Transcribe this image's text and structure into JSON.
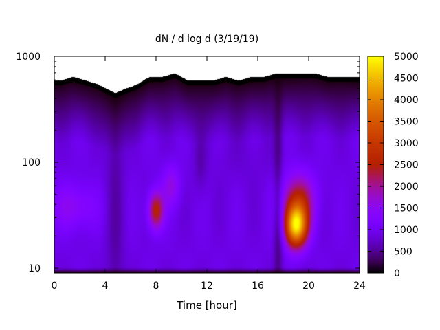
{
  "chart_data": {
    "type": "heatmap",
    "title": "dN / d log d (3/19/19)",
    "xlabel": "Time [hour]",
    "ylabel": "",
    "x_range": [
      0,
      24
    ],
    "y_range": [
      9,
      1000
    ],
    "y_scale": "log",
    "x_ticks": [
      0,
      4,
      8,
      12,
      16,
      20,
      24
    ],
    "x_tick_labels": [
      "0",
      "4",
      "8",
      "12",
      "16",
      "20",
      "24"
    ],
    "y_ticks": [
      10,
      100,
      1000
    ],
    "y_tick_labels": [
      "10",
      "100",
      "1000"
    ],
    "colorbar": {
      "range": [
        0,
        5000
      ],
      "ticks": [
        0,
        500,
        1000,
        1500,
        2000,
        2500,
        3000,
        3500,
        4000,
        4500,
        5000
      ],
      "tick_labels": [
        "0",
        "500",
        "1000",
        "1500",
        "2000",
        "2500",
        "3000",
        "3500",
        "4000",
        "4500",
        "5000"
      ],
      "colormap": "gnuplot-rgbformulae-7-5-15 (black-purple-red-orange-yellow)",
      "position": "right"
    },
    "grid": false,
    "upper_detection_limit_diameter": [
      {
        "x": 0.0,
        "y": 590
      },
      {
        "x": 0.5,
        "y": 590
      },
      {
        "x": 1.5,
        "y": 640
      },
      {
        "x": 2.5,
        "y": 590
      },
      {
        "x": 3.5,
        "y": 540
      },
      {
        "x": 4.2,
        "y": 490
      },
      {
        "x": 4.8,
        "y": 450
      },
      {
        "x": 5.5,
        "y": 490
      },
      {
        "x": 6.5,
        "y": 540
      },
      {
        "x": 7.5,
        "y": 640
      },
      {
        "x": 8.5,
        "y": 640
      },
      {
        "x": 9.5,
        "y": 690
      },
      {
        "x": 10.5,
        "y": 590
      },
      {
        "x": 11.5,
        "y": 590
      },
      {
        "x": 12.5,
        "y": 590
      },
      {
        "x": 13.5,
        "y": 640
      },
      {
        "x": 14.5,
        "y": 590
      },
      {
        "x": 15.5,
        "y": 640
      },
      {
        "x": 16.5,
        "y": 640
      },
      {
        "x": 17.5,
        "y": 690
      },
      {
        "x": 18.5,
        "y": 690
      },
      {
        "x": 19.5,
        "y": 690
      },
      {
        "x": 20.5,
        "y": 690
      },
      {
        "x": 21.5,
        "y": 640
      },
      {
        "x": 22.5,
        "y": 640
      },
      {
        "x": 24.0,
        "y": 640
      }
    ],
    "intensity_features": [
      {
        "x_center": 19.0,
        "y_center": 25,
        "peak": 4700,
        "x_width": 0.9,
        "y_width_decades": 0.2
      },
      {
        "x_center": 19.2,
        "y_center": 45,
        "peak": 2400,
        "x_width": 1.3,
        "y_width_decades": 0.25
      },
      {
        "x_center": 8.0,
        "y_center": 35,
        "peak": 2700,
        "x_width": 0.6,
        "y_width_decades": 0.18
      },
      {
        "x_center": 9.2,
        "y_center": 60,
        "peak": 1700,
        "x_width": 0.7,
        "y_width_decades": 0.2
      },
      {
        "x_center": 1.5,
        "y_center": 38,
        "peak": 1600,
        "x_width": 1.8,
        "y_width_decades": 0.22
      },
      {
        "x_center": 15.0,
        "y_center": 110,
        "peak": 900,
        "x_width": 3.0,
        "y_width_decades": 0.3
      },
      {
        "x_center": 17.8,
        "y_center": 25,
        "peak": 700,
        "x_width": 0.5,
        "y_width_decades": 0.25
      }
    ],
    "background_level": 1000
  }
}
